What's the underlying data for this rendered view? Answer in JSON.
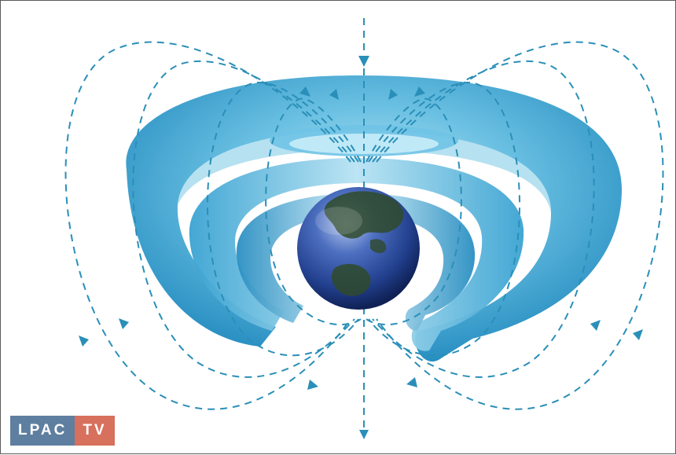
{
  "logo": {
    "part1": "LPAC",
    "part2": "TV",
    "colors": {
      "part1_bg": "#5f7fa0",
      "part2_bg": "#d7705c"
    }
  },
  "colors": {
    "outer_belt": "#2c97c9",
    "inner_belt": "#58b3da",
    "belt_highlight": "#a9dcef",
    "field_lines": "#2a8fb8",
    "earth_ocean": "#2b4fa3",
    "earth_land": "#2f4a2a"
  }
}
